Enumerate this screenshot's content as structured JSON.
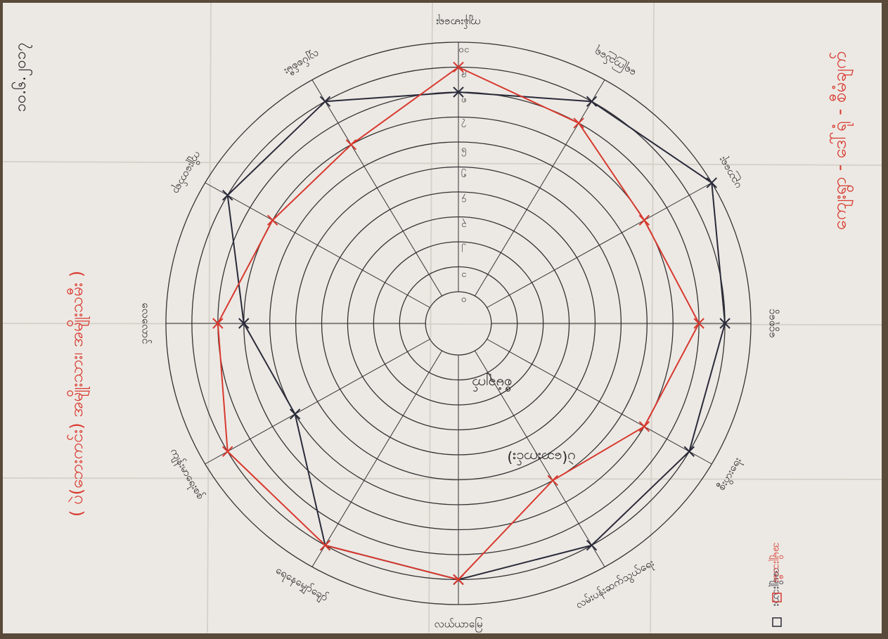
{
  "chart_data": {
    "type": "radar",
    "title": "ကျေးရွာ - ဒေါ်ရုံ - စီမံချက်",
    "subtitle": "( ပဲ(ဘေးကင်း) အမျိုးသား၊ အမျိုးသမီး )",
    "annotations": [
      "၁၀.၆.၂၀၁၇",
      "စီမံချက်",
      "ပဲ(ဘေးကင်း)"
    ],
    "categories": [
      "ကျန်းမာရေး",
      "ရေကြည်ရေ",
      "ပညာရေး",
      "ငွေစုငွေ",
      "စီးပွားရေး",
      "လမ်းပန်းဆက်သွယ်ရေး",
      "လယ်ယာမြေ",
      "ရေနေမျှော်ချော်",
      "ကျန်းမာရေးစစ်",
      "လေလောင်",
      "ကျိုးတော်ရာ",
      "လျှပ်စစ်မီး"
    ],
    "series": [
      {
        "name": "အမျိုးသား",
        "color": "#2a2a3a",
        "values": [
          8,
          9,
          10,
          9,
          9,
          9,
          9,
          9,
          6,
          7,
          9,
          9
        ]
      },
      {
        "name": "အမျိုးသမီး",
        "color": "#d8392f",
        "values": [
          9,
          8,
          7,
          8,
          7,
          6,
          9,
          9,
          9,
          8,
          7,
          7
        ]
      }
    ],
    "ylim": [
      0,
      10
    ],
    "yticks": [
      {
        "value": 0,
        "label": "၀"
      },
      {
        "value": 1,
        "label": "၁"
      },
      {
        "value": 2,
        "label": "၂"
      },
      {
        "value": 3,
        "label": "၃"
      },
      {
        "value": 4,
        "label": "၄"
      },
      {
        "value": 5,
        "label": "၅"
      },
      {
        "value": 6,
        "label": "၆"
      },
      {
        "value": 7,
        "label": "၇"
      },
      {
        "value": 8,
        "label": "၈"
      },
      {
        "value": 9,
        "label": "၉"
      },
      {
        "value": 10,
        "label": "၁၀"
      }
    ],
    "legend": "bottom-right"
  }
}
